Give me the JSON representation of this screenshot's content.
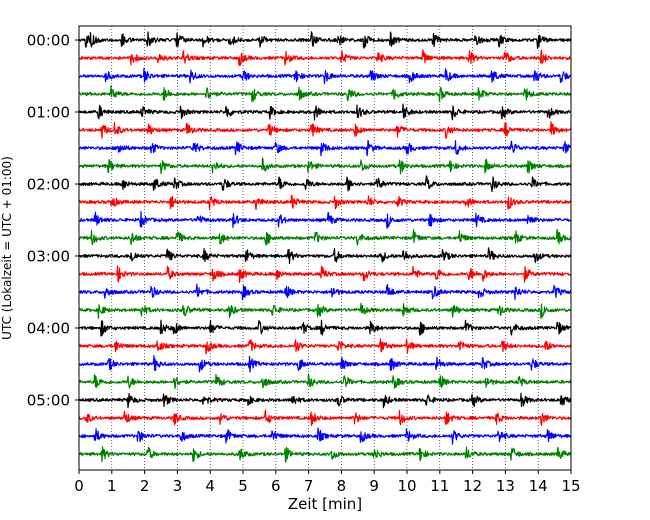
{
  "chart_data": {
    "type": "line",
    "title": "",
    "xlabel": "Zeit  [min]",
    "ylabel": "UTC (Lokalzeit = UTC + 01:00)",
    "xlim": [
      0,
      15
    ],
    "x_ticks": [
      0,
      1,
      2,
      3,
      4,
      5,
      6,
      7,
      8,
      9,
      10,
      11,
      12,
      13,
      14,
      15
    ],
    "x_tick_labels": [
      "0",
      "1",
      "2",
      "3",
      "4",
      "5",
      "6",
      "7",
      "8",
      "9",
      "10",
      "11",
      "12",
      "13",
      "14",
      "15"
    ],
    "y_tick_labels": [
      "00:00",
      "01:00",
      "02:00",
      "03:00",
      "04:00",
      "05:00"
    ],
    "y_tick_rows": [
      0,
      4,
      8,
      12,
      16,
      20
    ],
    "row_interval_minutes": 15,
    "row_count": 24,
    "row_colors": [
      "#000000",
      "#ff0000",
      "#0000ff",
      "#008000"
    ],
    "grid": {
      "x": true,
      "style": "dotted"
    },
    "rows": [
      {
        "start": "00:00",
        "color": "#000000",
        "events": [
          0.2,
          0.35,
          1.3,
          2.1,
          3.0,
          3.8,
          4.6,
          5.5,
          7.1,
          7.9,
          8.7,
          9.5,
          10.8,
          12.1,
          12.8,
          14.0
        ]
      },
      {
        "start": "00:15",
        "color": "#ff0000",
        "events": [
          1.6,
          2.4,
          3.2,
          4.9,
          6.3,
          8.0,
          9.1,
          10.5,
          11.9,
          13.0,
          14.1
        ]
      },
      {
        "start": "00:30",
        "color": "#0000ff",
        "events": [
          0.8,
          2.0,
          3.4,
          5.0,
          6.6,
          7.5,
          8.9,
          10.1,
          11.2,
          12.6,
          13.9,
          14.7
        ]
      },
      {
        "start": "00:45",
        "color": "#008000",
        "events": [
          1.0,
          2.6,
          3.9,
          5.3,
          6.7,
          8.2,
          9.6,
          11.0,
          12.2,
          13.6
        ]
      },
      {
        "start": "01:00",
        "color": "#000000",
        "events": [
          0.6,
          1.9,
          3.1,
          4.5,
          5.8,
          7.2,
          8.5,
          9.9,
          11.4,
          12.9,
          14.3
        ]
      },
      {
        "start": "01:15",
        "color": "#ff0000",
        "events": [
          0.7,
          1.1,
          2.1,
          3.3,
          5.8,
          7.1,
          8.4,
          9.7,
          11.2,
          13.0,
          14.4
        ]
      },
      {
        "start": "01:30",
        "color": "#0000ff",
        "events": [
          1.2,
          2.2,
          3.5,
          4.8,
          6.0,
          7.4,
          8.8,
          10.0,
          11.5,
          13.2,
          14.8
        ]
      },
      {
        "start": "01:45",
        "color": "#008000",
        "events": [
          0.9,
          2.5,
          4.1,
          5.6,
          7.0,
          8.6,
          9.8,
          11.3,
          12.4,
          13.7
        ]
      },
      {
        "start": "02:00",
        "color": "#000000",
        "events": [
          1.3,
          2.3,
          2.9,
          4.4,
          6.1,
          6.9,
          8.2,
          9.1,
          10.6,
          12.6,
          13.8
        ]
      },
      {
        "start": "02:15",
        "color": "#ff0000",
        "events": [
          1.0,
          2.8,
          4.0,
          5.4,
          6.5,
          7.8,
          8.8,
          9.7,
          11.8,
          13.1
        ]
      },
      {
        "start": "02:30",
        "color": "#0000ff",
        "events": [
          0.5,
          1.9,
          3.6,
          4.7,
          6.1,
          7.6,
          9.4,
          10.7,
          12.1,
          13.7
        ]
      },
      {
        "start": "02:45",
        "color": "#008000",
        "events": [
          0.4,
          1.6,
          3.0,
          4.3,
          5.7,
          7.2,
          8.5,
          10.2,
          11.6,
          13.3,
          14.6
        ]
      },
      {
        "start": "03:00",
        "color": "#000000",
        "events": [
          1.6,
          2.7,
          3.8,
          5.1,
          6.4,
          7.8,
          9.2,
          9.9,
          11.1,
          12.5,
          13.9
        ]
      },
      {
        "start": "03:15",
        "color": "#ff0000",
        "events": [
          1.2,
          2.7,
          4.1,
          4.9,
          6.0,
          7.4,
          8.7,
          10.2,
          10.9,
          11.9,
          12.3,
          13.6
        ]
      },
      {
        "start": "03:30",
        "color": "#0000ff",
        "events": [
          0.8,
          2.2,
          3.6,
          5.0,
          6.3,
          7.7,
          9.4,
          10.8,
          12.2,
          13.3,
          14.5
        ]
      },
      {
        "start": "03:45",
        "color": "#008000",
        "events": [
          0.6,
          1.9,
          3.2,
          4.6,
          5.9,
          7.3,
          8.6,
          9.9,
          11.4,
          12.8,
          14.1
        ]
      },
      {
        "start": "04:00",
        "color": "#000000",
        "events": [
          0.7,
          2.5,
          2.9,
          4.0,
          5.5,
          6.8,
          7.4,
          8.9,
          10.4,
          11.8,
          13.2,
          14.6
        ]
      },
      {
        "start": "04:15",
        "color": "#ff0000",
        "events": [
          1.1,
          2.4,
          3.9,
          5.2,
          6.6,
          7.9,
          9.2,
          10.0,
          11.6,
          12.9,
          14.2
        ]
      },
      {
        "start": "04:30",
        "color": "#0000ff",
        "events": [
          0.9,
          2.3,
          3.7,
          5.2,
          6.7,
          8.0,
          9.5,
          10.9,
          12.3,
          13.8
        ]
      },
      {
        "start": "04:45",
        "color": "#008000",
        "events": [
          0.5,
          1.5,
          2.9,
          4.2,
          5.6,
          7.0,
          8.1,
          9.6,
          11.0,
          12.4,
          13.4
        ]
      },
      {
        "start": "05:00",
        "color": "#000000",
        "events": [
          1.5,
          2.6,
          3.8,
          5.1,
          6.5,
          7.9,
          9.3,
          10.6,
          12.0,
          13.5,
          14.7
        ]
      },
      {
        "start": "05:15",
        "color": "#ff0000",
        "events": [
          0.2,
          1.4,
          2.9,
          4.3,
          5.7,
          7.1,
          8.4,
          9.8,
          11.2,
          12.7,
          14.1
        ]
      },
      {
        "start": "05:30",
        "color": "#0000ff",
        "events": [
          0.5,
          1.8,
          3.1,
          4.5,
          5.9,
          7.3,
          8.6,
          10.0,
          11.4,
          12.8,
          14.3
        ]
      },
      {
        "start": "05:45",
        "color": "#008000",
        "events": [
          0.7,
          2.1,
          3.5,
          4.9,
          6.3,
          7.7,
          9.0,
          10.4,
          11.8,
          13.2,
          14.6
        ]
      }
    ]
  }
}
